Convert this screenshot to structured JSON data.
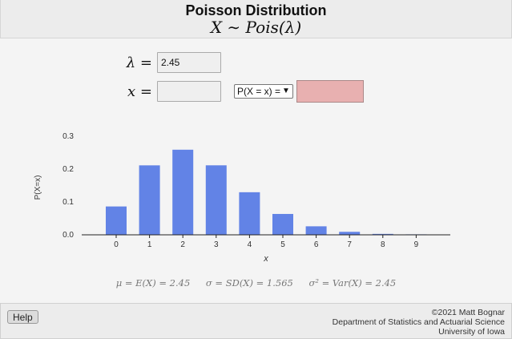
{
  "header": {
    "title": "Poisson Distribution",
    "formula": "X ∼ Pois(λ)"
  },
  "inputs": {
    "lambda_label": "λ =",
    "lambda_value": "2.45",
    "x_label": "x =",
    "x_value": "",
    "prob_type_selected": "P(X = x) =",
    "result_value": ""
  },
  "chart_data": {
    "type": "bar",
    "categories": [
      "0",
      "1",
      "2",
      "3",
      "4",
      "5",
      "6",
      "7",
      "8",
      "9"
    ],
    "values": [
      0.0863,
      0.2114,
      0.259,
      0.2115,
      0.1296,
      0.0635,
      0.0259,
      0.0091,
      0.0028,
      0.0008
    ],
    "xlabel": "x",
    "ylabel": "P(X=x)",
    "yticks": [
      "0.0",
      "0.1",
      "0.2",
      "0.3"
    ],
    "ylim": [
      0,
      0.3
    ],
    "bar_color": "#6283e6",
    "grid": false
  },
  "stats": {
    "mean": "μ = E(X) = 2.45",
    "sd": "σ = SD(X) = 1.565",
    "var": "σ² = Var(X) = 2.45"
  },
  "footer": {
    "help_label": "Help",
    "copyright": "©2021 Matt Bognar",
    "department": "Department of Statistics and Actuarial Science",
    "university": "University of Iowa"
  }
}
